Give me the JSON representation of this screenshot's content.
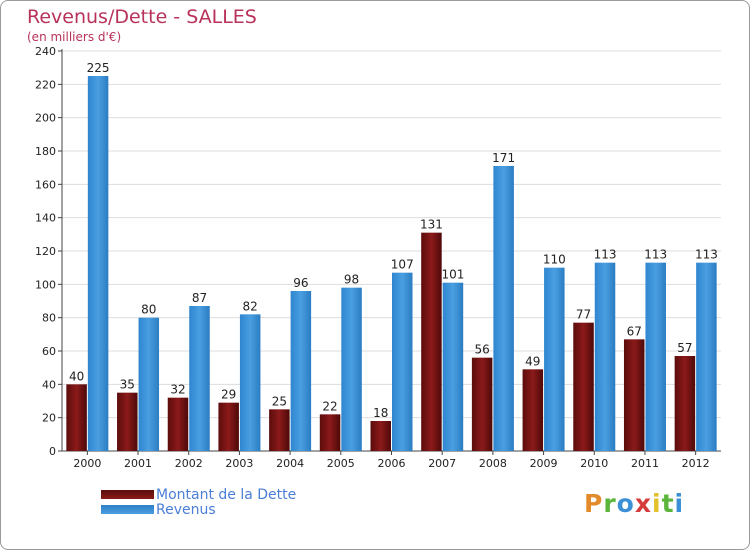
{
  "header": {
    "title": "Revenus/Dette - SALLES",
    "subtitle": "(en milliers d'€)"
  },
  "legend": {
    "debt_label": "Montant de la Dette",
    "revenue_label": "Revenus"
  },
  "logo": {
    "parts": [
      "P",
      "r",
      "o",
      "x",
      "i",
      "t",
      "i"
    ],
    "colors": [
      "#e38b2a",
      "#5bb53b",
      "#3b8fd6",
      "#d63b3b",
      "#e3c12a",
      "#5bb53b",
      "#3b8fd6"
    ]
  },
  "colors": {
    "debt": "#8b1a1a",
    "revenue": "#4a9fe0",
    "axis_text": "#222222"
  },
  "chart_data": {
    "type": "bar",
    "title": "Revenus/Dette - SALLES",
    "ylabel": "(en milliers d'€)",
    "xlabel": "",
    "categories": [
      "2000",
      "2001",
      "2002",
      "2003",
      "2004",
      "2005",
      "2006",
      "2007",
      "2008",
      "2009",
      "2010",
      "2011",
      "2012"
    ],
    "series": [
      {
        "name": "Montant de la Dette",
        "values": [
          40,
          35,
          32,
          29,
          25,
          22,
          18,
          131,
          56,
          49,
          77,
          67,
          57
        ]
      },
      {
        "name": "Revenus",
        "values": [
          225,
          80,
          87,
          82,
          96,
          98,
          107,
          101,
          171,
          110,
          113,
          113,
          113
        ]
      }
    ],
    "ylim": [
      0,
      240
    ],
    "yticks": [
      0,
      20,
      40,
      60,
      80,
      100,
      120,
      140,
      160,
      180,
      200,
      220,
      240
    ],
    "grid": true,
    "legend_position": "bottom-left"
  }
}
